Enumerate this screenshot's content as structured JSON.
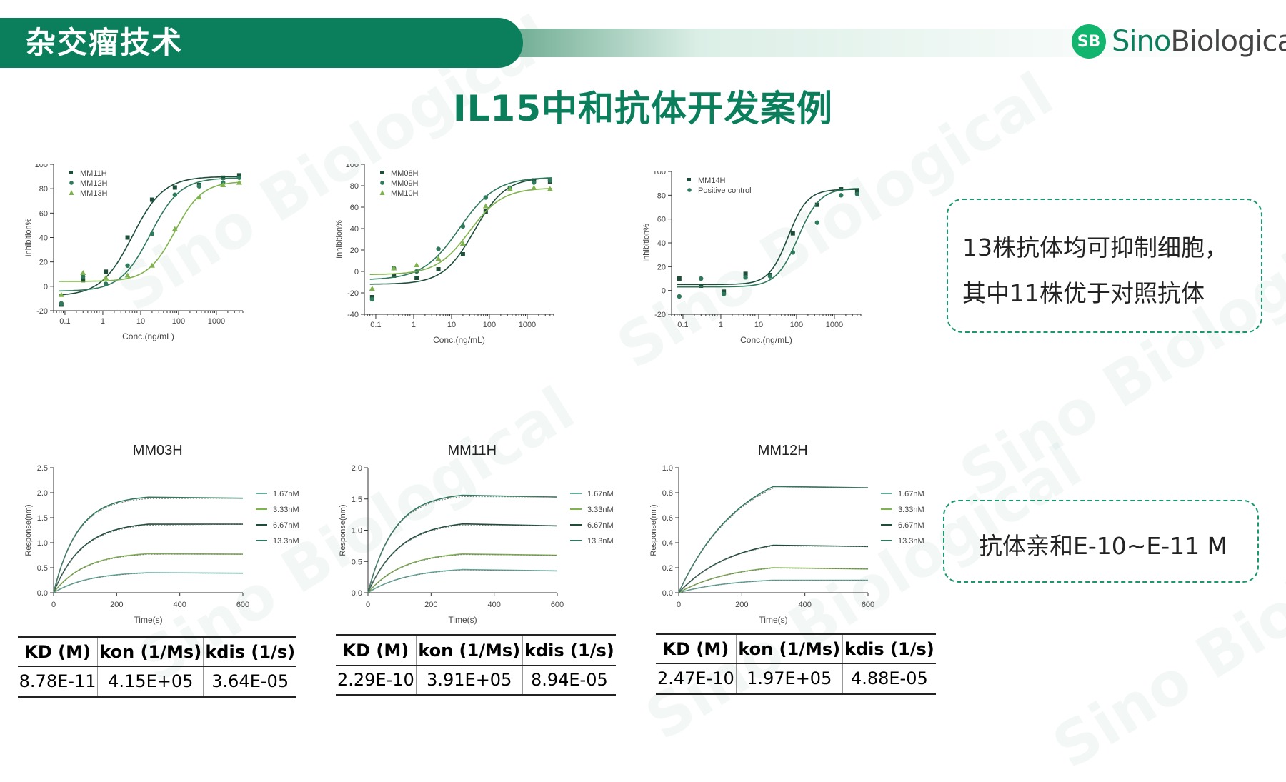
{
  "header": {
    "title": "杂交瘤技术"
  },
  "logo": {
    "badge": "SB",
    "brand_part1": "Sino",
    "brand_part2": "Biological"
  },
  "main_title": "IL15中和抗体开发案例",
  "watermarks": [
    "Sino Biological",
    "Sino Biological",
    "Sino Biological",
    "Sino Biological",
    "Sino Biological",
    "Sino Biological"
  ],
  "colors": {
    "primary": "#0b7f5c",
    "dark_green": "#1e4d3a",
    "mid_green": "#2f7a5c",
    "light_green": "#7fb34d",
    "teal": "#5fae9c"
  },
  "callouts": [
    {
      "lines": [
        "13株抗体均可抑制细胞，",
        "其中11株优于对照抗体"
      ]
    },
    {
      "lines": [
        "抗体亲和E-10~E-11 M"
      ]
    }
  ],
  "chart_data": [
    {
      "type": "scatter",
      "xlabel": "Conc.(ng/mL)",
      "ylabel": "Inhibition%",
      "x_scale": "log",
      "xlim": [
        0.05,
        5000
      ],
      "ylim": [
        -20,
        100
      ],
      "xticks": [
        "0.1",
        "1",
        "10",
        "100",
        "1000"
      ],
      "yticks": [
        "-20",
        "0",
        "20",
        "40",
        "60",
        "80",
        "100"
      ],
      "legend_position": "top-left",
      "series": [
        {
          "name": "MM11H",
          "marker": "square",
          "color": "#1e4d3a",
          "x": [
            0.08,
            0.3,
            1.2,
            4.5,
            20,
            80,
            350,
            1500,
            4000
          ],
          "y": [
            -15,
            5,
            12,
            40,
            71,
            81,
            83,
            89,
            91
          ],
          "fit": {
            "bottom": -8,
            "top": 90,
            "ec50": 6,
            "hill": 1.05
          }
        },
        {
          "name": "MM12H",
          "marker": "circle",
          "color": "#2f7a5c",
          "x": [
            0.08,
            0.3,
            1.2,
            4.5,
            20,
            80,
            350,
            1500,
            4000
          ],
          "y": [
            -14,
            8,
            2,
            17,
            43,
            75,
            82,
            85,
            89
          ],
          "fit": {
            "bottom": -4,
            "top": 89,
            "ec50": 18,
            "hill": 1.1
          }
        },
        {
          "name": "MM13H",
          "marker": "triangle",
          "color": "#7fb34d",
          "x": [
            0.08,
            0.3,
            1.2,
            4.5,
            20,
            80,
            350,
            1500,
            4000
          ],
          "y": [
            -7,
            11,
            7,
            9,
            17,
            47,
            73,
            83,
            85
          ],
          "fit": {
            "bottom": 4,
            "top": 86,
            "ec50": 80,
            "hill": 1.2
          }
        }
      ]
    },
    {
      "type": "scatter",
      "xlabel": "Conc.(ng/mL)",
      "ylabel": "Inhibition%",
      "x_scale": "log",
      "xlim": [
        0.05,
        5000
      ],
      "ylim": [
        -40,
        100
      ],
      "xticks": [
        "0.1",
        "1",
        "10",
        "100",
        "1000"
      ],
      "yticks": [
        "-40",
        "-20",
        "0",
        "20",
        "40",
        "60",
        "80",
        "100"
      ],
      "legend_position": "top-left",
      "series": [
        {
          "name": "MM08H",
          "marker": "square",
          "color": "#1e4d3a",
          "x": [
            0.08,
            0.3,
            1.2,
            4.5,
            20,
            80,
            350,
            1500,
            4000
          ],
          "y": [
            -24,
            -4,
            -6,
            2,
            16,
            56,
            78,
            85,
            84
          ],
          "fit": {
            "bottom": -12,
            "top": 88,
            "ec50": 40,
            "hill": 1.05
          }
        },
        {
          "name": "MM09H",
          "marker": "circle",
          "color": "#2f7a5c",
          "x": [
            0.08,
            0.3,
            1.2,
            4.5,
            20,
            80,
            350,
            1500,
            4000
          ],
          "y": [
            -26,
            3,
            0,
            21,
            42,
            69,
            78,
            83,
            85
          ],
          "fit": {
            "bottom": -8,
            "top": 88,
            "ec50": 16,
            "hill": 0.9
          }
        },
        {
          "name": "MM10H",
          "marker": "triangle",
          "color": "#7fb34d",
          "x": [
            0.08,
            0.3,
            1.2,
            4.5,
            20,
            80,
            350,
            1500,
            4000
          ],
          "y": [
            -16,
            3,
            6,
            12,
            26,
            61,
            77,
            78,
            77
          ],
          "fit": {
            "bottom": -3,
            "top": 78,
            "ec50": 30,
            "hill": 1.0
          }
        }
      ]
    },
    {
      "type": "scatter",
      "xlabel": "Conc.(ng/mL)",
      "ylabel": "Inhibition%",
      "x_scale": "log",
      "xlim": [
        0.05,
        5000
      ],
      "ylim": [
        -20,
        100
      ],
      "xticks": [
        "0.1",
        "1",
        "10",
        "100",
        "1000"
      ],
      "yticks": [
        "-20",
        "0",
        "20",
        "40",
        "60",
        "80",
        "100"
      ],
      "legend_position": "top-left",
      "series": [
        {
          "name": "MM14H",
          "marker": "square",
          "color": "#1e4d3a",
          "x": [
            0.08,
            0.3,
            1.2,
            4.5,
            20,
            80,
            350,
            1500,
            4000
          ],
          "y": [
            10,
            4,
            -1,
            14,
            13,
            48,
            72,
            85,
            83
          ],
          "fit": {
            "bottom": 5,
            "top": 85,
            "ec50": 60,
            "hill": 1.7
          }
        },
        {
          "name": "Positive control",
          "marker": "circle",
          "color": "#2f7a5c",
          "x": [
            0.08,
            0.3,
            1.2,
            4.5,
            20,
            80,
            350,
            1500,
            4000
          ],
          "y": [
            -5,
            10,
            -3,
            11,
            12,
            32,
            57,
            80,
            81
          ],
          "fit": {
            "bottom": 3,
            "top": 86,
            "ec50": 110,
            "hill": 1.5
          }
        }
      ]
    },
    {
      "type": "line",
      "title": "MM03H",
      "xlabel": "Time(s)",
      "ylabel": "Response(nm)",
      "xlim": [
        0,
        600
      ],
      "ylim": [
        0,
        2.5
      ],
      "xticks": [
        "0",
        "200",
        "400",
        "600"
      ],
      "yticks": [
        "0.0",
        "0.5",
        "1.0",
        "1.5",
        "2.0",
        "2.5"
      ],
      "t_switch": 300,
      "t_end": 600,
      "legend_position": "right",
      "series": [
        {
          "name": "1.67nM",
          "color": "#5fae9c",
          "plateau": 0.4,
          "k": 0.009,
          "end": 0.39
        },
        {
          "name": "3.33nM",
          "color": "#7fb34d",
          "plateau": 0.78,
          "k": 0.01,
          "end": 0.77
        },
        {
          "name": "6.67nM",
          "color": "#1e4d3a",
          "plateau": 1.37,
          "k": 0.011,
          "end": 1.37
        },
        {
          "name": "13.3nM",
          "color": "#2f7a5c",
          "plateau": 1.91,
          "k": 0.013,
          "end": 1.89
        }
      ]
    },
    {
      "type": "line",
      "title": "MM11H",
      "xlabel": "Time(s)",
      "ylabel": "Response(nm)",
      "xlim": [
        0,
        600
      ],
      "ylim": [
        0,
        2.0
      ],
      "xticks": [
        "0",
        "200",
        "400",
        "600"
      ],
      "yticks": [
        "0.0",
        "0.5",
        "1.0",
        "1.5",
        "2.0"
      ],
      "t_switch": 300,
      "t_end": 600,
      "legend_position": "right",
      "series": [
        {
          "name": "1.67nM",
          "color": "#5fae9c",
          "plateau": 0.37,
          "k": 0.008,
          "end": 0.35
        },
        {
          "name": "3.33nM",
          "color": "#7fb34d",
          "plateau": 0.62,
          "k": 0.009,
          "end": 0.6
        },
        {
          "name": "6.67nM",
          "color": "#1e4d3a",
          "plateau": 1.1,
          "k": 0.01,
          "end": 1.07
        },
        {
          "name": "13.3nM",
          "color": "#2f7a5c",
          "plateau": 1.56,
          "k": 0.012,
          "end": 1.53
        }
      ]
    },
    {
      "type": "line",
      "title": "MM12H",
      "xlabel": "Time(s)",
      "ylabel": "Response(nm)",
      "xlim": [
        0,
        600
      ],
      "ylim": [
        0,
        1.0
      ],
      "xticks": [
        "0",
        "200",
        "400",
        "600"
      ],
      "yticks": [
        "0.0",
        "0.2",
        "0.4",
        "0.6",
        "0.8",
        "1.0"
      ],
      "t_switch": 300,
      "t_end": 600,
      "legend_position": "right",
      "series": [
        {
          "name": "1.67nM",
          "color": "#5fae9c",
          "plateau": 0.1,
          "k": 0.006,
          "end": 0.1
        },
        {
          "name": "3.33nM",
          "color": "#7fb34d",
          "plateau": 0.2,
          "k": 0.006,
          "end": 0.19
        },
        {
          "name": "6.67nM",
          "color": "#1e4d3a",
          "plateau": 0.38,
          "k": 0.006,
          "end": 0.37
        },
        {
          "name": "13.3nM",
          "color": "#2f7a5c",
          "plateau": 0.85,
          "k": 0.005,
          "end": 0.84
        }
      ]
    }
  ],
  "kinetics_tables": [
    {
      "headers": [
        "KD (M)",
        "kon (1/Ms)",
        "kdis (1/s)"
      ],
      "values": [
        "8.78E-11",
        "4.15E+05",
        "3.64E-05"
      ]
    },
    {
      "headers": [
        "KD (M)",
        "kon (1/Ms)",
        "kdis (1/s)"
      ],
      "values": [
        "2.29E-10",
        "3.91E+05",
        "8.94E-05"
      ]
    },
    {
      "headers": [
        "KD (M)",
        "kon (1/Ms)",
        "kdis (1/s)"
      ],
      "values": [
        "2.47E-10",
        "1.97E+05",
        "4.88E-05"
      ]
    }
  ]
}
